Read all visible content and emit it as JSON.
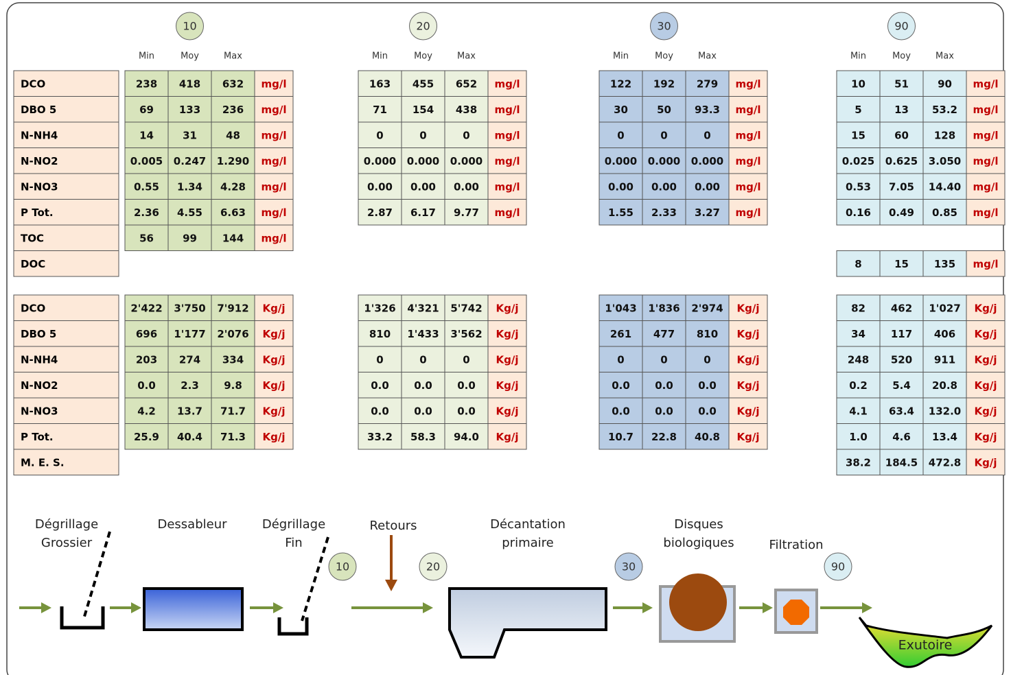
{
  "row_labels_conc": [
    "DCO",
    "DBO 5",
    "N-NH4",
    "N-NO2",
    "N-NO3",
    "P Tot.",
    "TOC",
    "DOC"
  ],
  "row_labels_load": [
    "DCO",
    "DBO 5",
    "N-NH4",
    "N-NO2",
    "N-NO3",
    "P Tot.",
    "M. E. S."
  ],
  "stations": [
    {
      "badge": "10",
      "headers": [
        "Min",
        "Moy",
        "Max"
      ],
      "conc": [
        [
          "238",
          "418",
          "632",
          "mg/l"
        ],
        [
          "69",
          "133",
          "236",
          "mg/l"
        ],
        [
          "14",
          "31",
          "48",
          "mg/l"
        ],
        [
          "0.005",
          "0.247",
          "1.290",
          "mg/l"
        ],
        [
          "0.55",
          "1.34",
          "4.28",
          "mg/l"
        ],
        [
          "2.36",
          "4.55",
          "6.63",
          "mg/l"
        ],
        [
          "56",
          "99",
          "144",
          "mg/l"
        ],
        null
      ],
      "load": [
        [
          "2'422",
          "3'750",
          "7'912",
          "Kg/j"
        ],
        [
          "696",
          "1'177",
          "2'076",
          "Kg/j"
        ],
        [
          "203",
          "274",
          "334",
          "Kg/j"
        ],
        [
          "0.0",
          "2.3",
          "9.8",
          "Kg/j"
        ],
        [
          "4.2",
          "13.7",
          "71.7",
          "Kg/j"
        ],
        [
          "25.9",
          "40.4",
          "71.3",
          "Kg/j"
        ],
        null
      ]
    },
    {
      "badge": "20",
      "headers": [
        "Min",
        "Moy",
        "Max"
      ],
      "conc": [
        [
          "163",
          "455",
          "652",
          "mg/l"
        ],
        [
          "71",
          "154",
          "438",
          "mg/l"
        ],
        [
          "0",
          "0",
          "0",
          "mg/l"
        ],
        [
          "0.000",
          "0.000",
          "0.000",
          "mg/l"
        ],
        [
          "0.00",
          "0.00",
          "0.00",
          "mg/l"
        ],
        [
          "2.87",
          "6.17",
          "9.77",
          "mg/l"
        ],
        null,
        null
      ],
      "load": [
        [
          "1'326",
          "4'321",
          "5'742",
          "Kg/j"
        ],
        [
          "810",
          "1'433",
          "3'562",
          "Kg/j"
        ],
        [
          "0",
          "0",
          "0",
          "Kg/j"
        ],
        [
          "0.0",
          "0.0",
          "0.0",
          "Kg/j"
        ],
        [
          "0.0",
          "0.0",
          "0.0",
          "Kg/j"
        ],
        [
          "33.2",
          "58.3",
          "94.0",
          "Kg/j"
        ],
        null
      ]
    },
    {
      "badge": "30",
      "headers": [
        "Min",
        "Moy",
        "Max"
      ],
      "conc": [
        [
          "122",
          "192",
          "279",
          "mg/l"
        ],
        [
          "30",
          "50",
          "93.3",
          "mg/l"
        ],
        [
          "0",
          "0",
          "0",
          "mg/l"
        ],
        [
          "0.000",
          "0.000",
          "0.000",
          "mg/l"
        ],
        [
          "0.00",
          "0.00",
          "0.00",
          "mg/l"
        ],
        [
          "1.55",
          "2.33",
          "3.27",
          "mg/l"
        ],
        null,
        null
      ],
      "load": [
        [
          "1'043",
          "1'836",
          "2'974",
          "Kg/j"
        ],
        [
          "261",
          "477",
          "810",
          "Kg/j"
        ],
        [
          "0",
          "0",
          "0",
          "Kg/j"
        ],
        [
          "0.0",
          "0.0",
          "0.0",
          "Kg/j"
        ],
        [
          "0.0",
          "0.0",
          "0.0",
          "Kg/j"
        ],
        [
          "10.7",
          "22.8",
          "40.8",
          "Kg/j"
        ],
        null
      ]
    },
    {
      "badge": "90",
      "headers": [
        "Min",
        "Moy",
        "Max"
      ],
      "conc": [
        [
          "10",
          "51",
          "90",
          "mg/l"
        ],
        [
          "5",
          "13",
          "53.2",
          "mg/l"
        ],
        [
          "15",
          "60",
          "128",
          "mg/l"
        ],
        [
          "0.025",
          "0.625",
          "3.050",
          "mg/l"
        ],
        [
          "0.53",
          "7.05",
          "14.40",
          "mg/l"
        ],
        [
          "0.16",
          "0.49",
          "0.85",
          "mg/l"
        ],
        null,
        [
          "8",
          "15",
          "135",
          "mg/l"
        ]
      ],
      "load": [
        [
          "82",
          "462",
          "1'027",
          "Kg/j"
        ],
        [
          "34",
          "117",
          "406",
          "Kg/j"
        ],
        [
          "248",
          "520",
          "911",
          "Kg/j"
        ],
        [
          "0.2",
          "5.4",
          "20.8",
          "Kg/j"
        ],
        [
          "4.1",
          "63.4",
          "132.0",
          "Kg/j"
        ],
        [
          "1.0",
          "4.6",
          "13.4",
          "Kg/j"
        ],
        [
          "38.2",
          "184.5",
          "472.8",
          "Kg/j"
        ]
      ]
    }
  ],
  "process": {
    "degrillage_grossier": [
      "Dégrillage",
      "Grossier"
    ],
    "dessableur": "Dessableur",
    "degrillage_fin": [
      "Dégrillage",
      "Fin"
    ],
    "retours": "Retours",
    "decantation": [
      "Décantation",
      "primaire"
    ],
    "disques": [
      "Disques",
      "biologiques"
    ],
    "filtration": "Filtration",
    "exutoire": "Exutoire"
  }
}
